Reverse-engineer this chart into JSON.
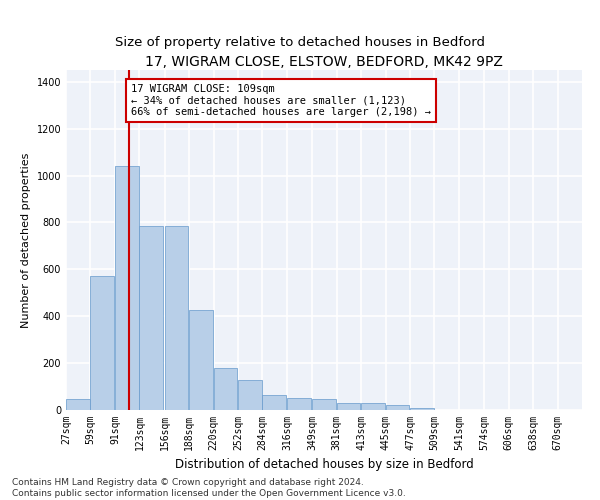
{
  "title1": "17, WIGRAM CLOSE, ELSTOW, BEDFORD, MK42 9PZ",
  "title2": "Size of property relative to detached houses in Bedford",
  "xlabel": "Distribution of detached houses by size in Bedford",
  "ylabel": "Number of detached properties",
  "footer1": "Contains HM Land Registry data © Crown copyright and database right 2024.",
  "footer2": "Contains public sector information licensed under the Open Government Licence v3.0.",
  "annotation_line1": "17 WIGRAM CLOSE: 109sqm",
  "annotation_line2": "← 34% of detached houses are smaller (1,123)",
  "annotation_line3": "66% of semi-detached houses are larger (2,198) →",
  "bar_color": "#b8cfe8",
  "bar_edge_color": "#6699cc",
  "red_line_x": 109,
  "categories": [
    "27sqm",
    "59sqm",
    "91sqm",
    "123sqm",
    "156sqm",
    "188sqm",
    "220sqm",
    "252sqm",
    "284sqm",
    "316sqm",
    "349sqm",
    "381sqm",
    "413sqm",
    "445sqm",
    "477sqm",
    "509sqm",
    "541sqm",
    "574sqm",
    "606sqm",
    "638sqm",
    "670sqm"
  ],
  "bin_starts": [
    27,
    59,
    91,
    123,
    156,
    188,
    220,
    252,
    284,
    316,
    349,
    381,
    413,
    445,
    477,
    509,
    541,
    574,
    606,
    638,
    670
  ],
  "bin_width": 32,
  "values": [
    45,
    570,
    1040,
    785,
    785,
    425,
    180,
    130,
    65,
    50,
    45,
    28,
    28,
    20,
    10,
    0,
    0,
    0,
    0,
    0,
    0
  ],
  "ylim": [
    0,
    1450
  ],
  "yticks": [
    0,
    200,
    400,
    600,
    800,
    1000,
    1200,
    1400
  ],
  "background_color": "#eef2f9",
  "grid_color": "#ffffff",
  "annotation_box_color": "#ffffff",
  "annotation_box_edge": "#cc0000",
  "red_line_color": "#cc0000",
  "title1_fontsize": 10,
  "title2_fontsize": 9.5,
  "xlabel_fontsize": 8.5,
  "ylabel_fontsize": 8,
  "tick_fontsize": 7,
  "annotation_fontsize": 7.5,
  "footer_fontsize": 6.5
}
